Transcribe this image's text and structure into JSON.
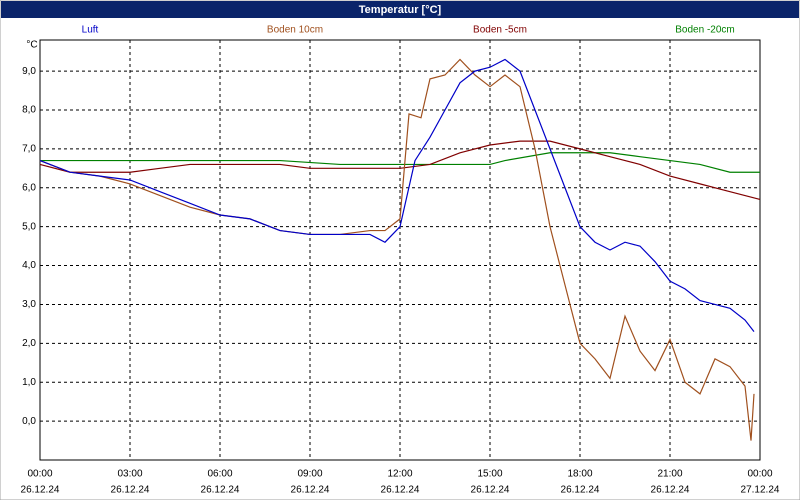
{
  "chart_data": {
    "type": "line",
    "title": "Temperatur [°C]",
    "y_label": "°C",
    "xlim": [
      0,
      24
    ],
    "ylim": [
      -1.0,
      9.8
    ],
    "grid": true,
    "xticks": [
      {
        "value": 0,
        "label": "00:00",
        "date": "26.12.24"
      },
      {
        "value": 3,
        "label": "03:00",
        "date": "26.12.24"
      },
      {
        "value": 6,
        "label": "06:00",
        "date": "26.12.24"
      },
      {
        "value": 9,
        "label": "09:00",
        "date": "26.12.24"
      },
      {
        "value": 12,
        "label": "12:00",
        "date": "26.12.24"
      },
      {
        "value": 15,
        "label": "15:00",
        "date": "26.12.24"
      },
      {
        "value": 18,
        "label": "18:00",
        "date": "26.12.24"
      },
      {
        "value": 21,
        "label": "21:00",
        "date": "26.12.24"
      },
      {
        "value": 24,
        "label": "00:00",
        "date": "27.12.24"
      }
    ],
    "yticks": [
      {
        "value": 0,
        "label": "0,0"
      },
      {
        "value": 1,
        "label": "1,0"
      },
      {
        "value": 2,
        "label": "2,0"
      },
      {
        "value": 3,
        "label": "3,0"
      },
      {
        "value": 4,
        "label": "4,0"
      },
      {
        "value": 5,
        "label": "5,0"
      },
      {
        "value": 6,
        "label": "6,0"
      },
      {
        "value": 7,
        "label": "7,0"
      },
      {
        "value": 8,
        "label": "8,0"
      },
      {
        "value": 9,
        "label": "9,0"
      }
    ],
    "series": [
      {
        "name": "Luft",
        "color": "#0000c8",
        "x": [
          0,
          1,
          2,
          3,
          4,
          5,
          6,
          7,
          8,
          9,
          10,
          11,
          11.5,
          12,
          12.5,
          13,
          13.5,
          14,
          14.5,
          15,
          15.5,
          16,
          16.5,
          17,
          17.5,
          18,
          18.5,
          19,
          19.5,
          20,
          20.5,
          21,
          21.5,
          22,
          22.5,
          23,
          23.5,
          23.8
        ],
        "values": [
          6.7,
          6.4,
          6.3,
          6.2,
          5.9,
          5.6,
          5.3,
          5.2,
          4.9,
          4.8,
          4.8,
          4.8,
          4.6,
          5.0,
          6.7,
          7.3,
          8.0,
          8.7,
          9.0,
          9.1,
          9.3,
          9.0,
          8.0,
          7.0,
          6.0,
          5.0,
          4.6,
          4.4,
          4.6,
          4.5,
          4.1,
          3.6,
          3.4,
          3.1,
          3.0,
          2.9,
          2.6,
          2.3
        ]
      },
      {
        "name": "Boden 10cm",
        "color": "#a0501e",
        "x": [
          0,
          1,
          2,
          3,
          4,
          5,
          6,
          7,
          8,
          9,
          10,
          11,
          11.5,
          12,
          12.3,
          12.7,
          13,
          13.5,
          14,
          14.5,
          15,
          15.5,
          16,
          16.5,
          17,
          17.5,
          18,
          18.5,
          19,
          19.5,
          20,
          20.5,
          21,
          21.5,
          22,
          22.5,
          23,
          23.5,
          23.7,
          23.8
        ],
        "values": [
          6.7,
          6.4,
          6.3,
          6.1,
          5.8,
          5.5,
          5.3,
          5.2,
          4.9,
          4.8,
          4.8,
          4.9,
          4.9,
          5.2,
          7.9,
          7.8,
          8.8,
          8.9,
          9.3,
          8.9,
          8.6,
          8.9,
          8.6,
          7.0,
          5.0,
          3.5,
          2.0,
          1.6,
          1.1,
          2.7,
          1.8,
          1.3,
          2.1,
          1.0,
          0.7,
          1.6,
          1.4,
          0.9,
          -0.5,
          0.7
        ]
      },
      {
        "name": "Boden -5cm",
        "color": "#800000",
        "x": [
          0,
          1,
          2,
          3,
          4,
          5,
          6,
          7,
          8,
          9,
          10,
          11,
          12,
          13,
          14,
          15,
          16,
          17,
          18,
          19,
          20,
          21,
          22,
          23,
          24
        ],
        "values": [
          6.6,
          6.4,
          6.4,
          6.4,
          6.5,
          6.6,
          6.6,
          6.6,
          6.6,
          6.5,
          6.5,
          6.5,
          6.5,
          6.6,
          6.9,
          7.1,
          7.2,
          7.2,
          7.0,
          6.8,
          6.6,
          6.3,
          6.1,
          5.9,
          5.7
        ]
      },
      {
        "name": "Boden -20cm",
        "color": "#008000",
        "x": [
          0,
          2,
          4,
          6,
          8,
          10,
          12,
          13,
          14,
          15,
          15.5,
          17,
          18,
          19,
          20,
          21,
          22,
          23,
          24
        ],
        "values": [
          6.7,
          6.7,
          6.7,
          6.7,
          6.7,
          6.6,
          6.6,
          6.6,
          6.6,
          6.6,
          6.7,
          6.9,
          6.9,
          6.9,
          6.8,
          6.7,
          6.6,
          6.4,
          6.4
        ]
      }
    ]
  }
}
